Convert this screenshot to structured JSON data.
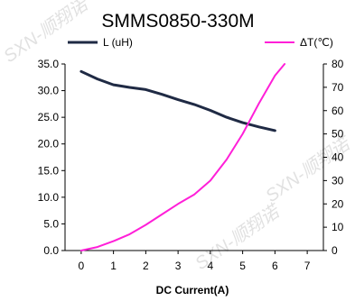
{
  "watermark": "SXN-顺翔诺",
  "colors": {
    "inductance": "#1f2a44",
    "temperature": "#ff1fd8",
    "axis": "#000000"
  },
  "chart_data": {
    "type": "line",
    "title": "SMMS0850-330M",
    "xlabel": "DC Current(A)",
    "ylabel_left": "",
    "ylabel_right": "",
    "xlim": [
      -0.5,
      7.5
    ],
    "ylim_left": [
      0,
      35
    ],
    "ylim_right": [
      0,
      80
    ],
    "x_ticks": [
      "0",
      "1",
      "2",
      "3",
      "4",
      "5",
      "6",
      "7"
    ],
    "y_left_ticks": [
      "0.0",
      "5.0",
      "10.0",
      "15.0",
      "20.0",
      "25.0",
      "30.0",
      "35.0"
    ],
    "y_right_ticks": [
      "0",
      "10",
      "20",
      "30",
      "40",
      "50",
      "60",
      "70",
      "80"
    ],
    "grid": false,
    "legend_position": "top",
    "series": [
      {
        "name": "L (uH)",
        "axis": "left",
        "x": [
          0,
          0.5,
          1,
          1.5,
          2,
          2.5,
          3,
          3.5,
          4,
          4.5,
          5,
          5.5,
          6
        ],
        "y": [
          33.6,
          32.2,
          31.1,
          30.6,
          30.2,
          29.3,
          28.3,
          27.4,
          26.3,
          25.0,
          24.0,
          23.2,
          22.5
        ]
      },
      {
        "name": "ΔT(℃)",
        "axis": "right",
        "x": [
          0,
          0.5,
          1,
          1.5,
          2,
          2.5,
          3,
          3.5,
          4,
          4.5,
          5,
          5.5,
          6,
          6.3
        ],
        "y": [
          0,
          1.5,
          4,
          7,
          11,
          15.5,
          20,
          24,
          30,
          39,
          50,
          63,
          75,
          80
        ]
      }
    ]
  }
}
